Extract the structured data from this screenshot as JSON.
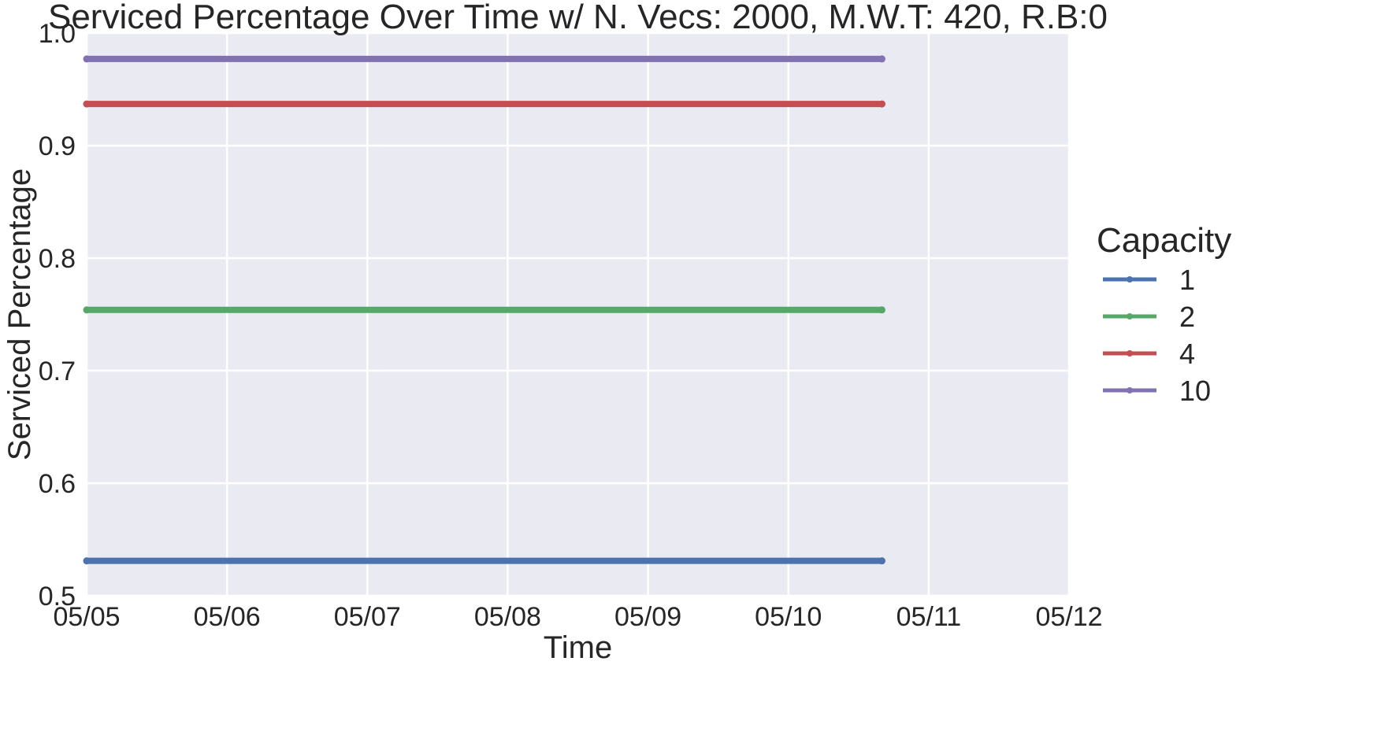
{
  "chart_data": {
    "type": "line",
    "title": "Serviced Percentage Over Time w/ N. Vecs: 2000, M.W.T: 420, R.B:0",
    "xlabel": "Time",
    "ylabel": "Serviced Percentage",
    "x_ticks": [
      "05/05",
      "05/06",
      "05/07",
      "05/08",
      "05/09",
      "05/10",
      "05/11",
      "05/12"
    ],
    "x_range": [
      "05/05",
      "05/12"
    ],
    "ylim": [
      0.5,
      1.0
    ],
    "y_ticks": [
      "0.5",
      "0.6",
      "0.7",
      "0.8",
      "0.9",
      "1.0"
    ],
    "grid": true,
    "legend": {
      "title": "Capacity",
      "placement": "right"
    },
    "x": [
      "05/05 00:00",
      "05/10 16:00"
    ],
    "series": [
      {
        "name": "1",
        "color": "#4c72b0",
        "values": [
          0.531,
          0.531
        ]
      },
      {
        "name": "2",
        "color": "#55a868",
        "values": [
          0.754,
          0.754
        ]
      },
      {
        "name": "4",
        "color": "#c44e52",
        "values": [
          0.937,
          0.937
        ]
      },
      {
        "name": "10",
        "color": "#8172b2",
        "values": [
          0.977,
          0.977
        ]
      }
    ],
    "colors": {
      "plot_background": "#eaeaf2",
      "grid": "#ffffff",
      "text": "#262626"
    }
  }
}
